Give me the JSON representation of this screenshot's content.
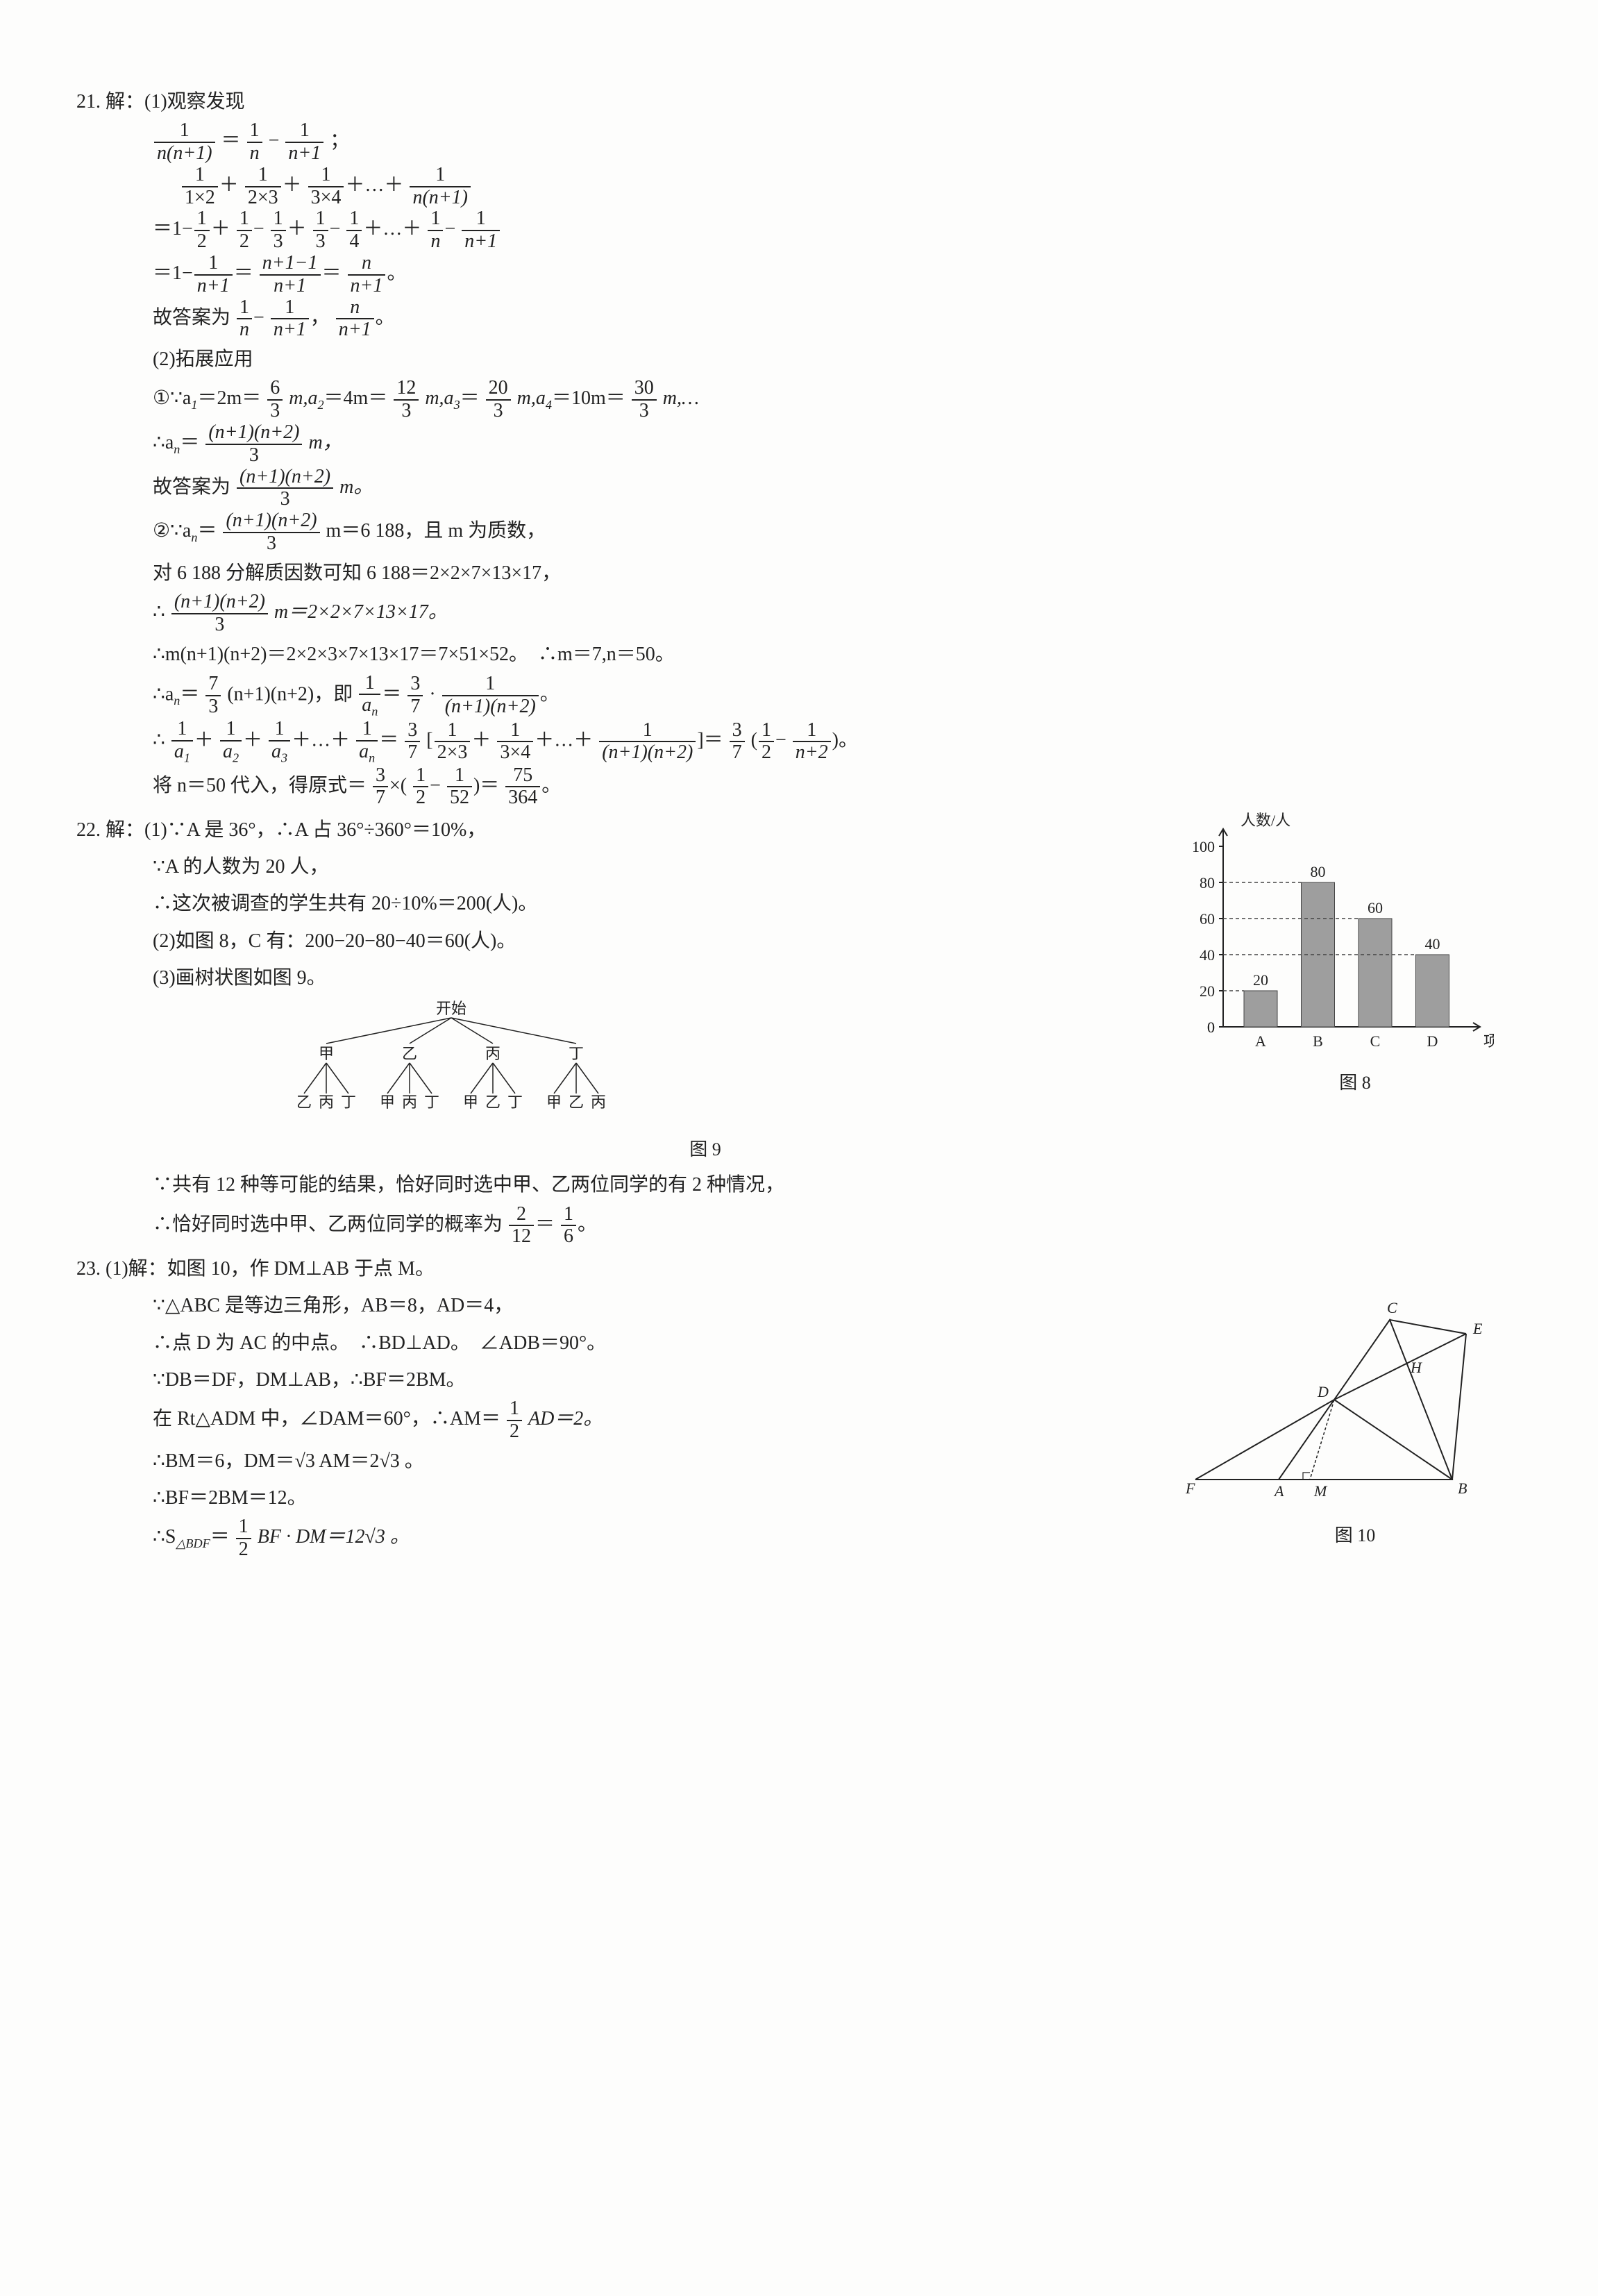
{
  "q21": {
    "num": "21.",
    "head": "解：(1)观察发现",
    "l1a": "1",
    "l1b": "n(n+1)",
    "l1c": "1",
    "l1d": "n",
    "l1e": "1",
    "l1f": "n+1",
    "l1tail": "；",
    "l2a": "1",
    "l2b": "1×2",
    "l2c": "1",
    "l2d": "2×3",
    "l2e": "1",
    "l2f": "3×4",
    "l2g": "1",
    "l2h": "n(n+1)",
    "l3a": "1",
    "l3b": "2",
    "l3c": "1",
    "l3d": "2",
    "l3e": "1",
    "l3f": "3",
    "l3g": "1",
    "l3h": "3",
    "l3i": "1",
    "l3j": "4",
    "l3k": "1",
    "l3l": "n",
    "l3m": "1",
    "l3n": "n+1",
    "l4a": "1",
    "l4b": "n+1",
    "l4c": "n+1−1",
    "l4d": "n+1",
    "l4e": "n",
    "l4f": "n+1",
    "ans1_pre": "故答案为",
    "ans1a": "1",
    "ans1b": "n",
    "ans1c": "1",
    "ans1d": "n+1",
    "ans1e": "n",
    "ans1f": "n+1",
    "part2": "(2)拓展应用",
    "p2_l1_pre": "①∵a",
    "p2_l1_a": "＝2m＝",
    "p2_l1_b": "6",
    "p2_l1_c": "3",
    "p2_l1_d": "m,a",
    "p2_l1_e": "＝4m＝",
    "p2_l1_f": "12",
    "p2_l1_g": "3",
    "p2_l1_h": "m,a",
    "p2_l1_i": "＝",
    "p2_l1_j": "20",
    "p2_l1_k": "3",
    "p2_l1_l": "m,a",
    "p2_l1_m": "＝10m＝",
    "p2_l1_n": "30",
    "p2_l1_o": "3",
    "p2_l1_p": "m,…",
    "p2_l2_pre": "∴a",
    "p2_l2_a": "(n+1)(n+2)",
    "p2_l2_b": "3",
    "p2_l2_c": "m，",
    "p2_l3_pre": "故答案为",
    "p2_l3_a": "(n+1)(n+2)",
    "p2_l3_b": "3",
    "p2_l3_c": "m。",
    "p2_l4_pre": "②∵a",
    "p2_l4_a": "(n+1)(n+2)",
    "p2_l4_b": "3",
    "p2_l4_c": "m＝6 188，且 m 为质数，",
    "p2_l5": "对 6 188 分解质因数可知 6 188＝2×2×7×13×17，",
    "p2_l6_pre": "∴",
    "p2_l6_a": "(n+1)(n+2)",
    "p2_l6_b": "3",
    "p2_l6_c": "m＝2×2×7×13×17。",
    "p2_l7": "∴m(n+1)(n+2)＝2×2×3×7×13×17＝7×51×52。　∴m＝7,n＝50。",
    "p2_l8_pre": "∴a",
    "p2_l8_a": "7",
    "p2_l8_b": "3",
    "p2_l8_c": "(n+1)(n+2)，即",
    "p2_l8_d": "1",
    "p2_l8_e": "a",
    "p2_l8_f": "3",
    "p2_l8_g": "7",
    "p2_l8_h": "1",
    "p2_l8_i": "(n+1)(n+2)",
    "p2_l9_pre": "∴",
    "p2_l9_a": "1",
    "p2_l9_b": "a",
    "p2_l9_c": "3",
    "p2_l9_d": "7",
    "p2_l9_e": "1",
    "p2_l9_f": "2×3",
    "p2_l9_g": "1",
    "p2_l9_h": "3×4",
    "p2_l9_i": "1",
    "p2_l9_j": "(n+1)(n+2)",
    "p2_l9_k": "3",
    "p2_l9_l": "7",
    "p2_l9_m": "1",
    "p2_l9_n": "2",
    "p2_l9_o": "1",
    "p2_l9_p": "n+2",
    "p2_l10_pre": "将 n＝50 代入，得原式＝",
    "p2_l10_a": "3",
    "p2_l10_b": "7",
    "p2_l10_c": "1",
    "p2_l10_d": "2",
    "p2_l10_e": "1",
    "p2_l10_f": "52",
    "p2_l10_g": "75",
    "p2_l10_h": "364"
  },
  "q22": {
    "num": "22.",
    "l1": "解：(1)∵A 是 36°，∴A 占 36°÷360°＝10%，",
    "l2": "∵A 的人数为 20 人，",
    "l3": "∴这次被调查的学生共有 20÷10%＝200(人)。",
    "l4": "(2)如图 8，C 有：200−20−80−40＝60(人)。",
    "l5": "(3)画树状图如图 9。",
    "l6": "∵共有 12 种等可能的结果，恰好同时选中甲、乙两位同学的有 2 种情况，",
    "l7_pre": "∴恰好同时选中甲、乙两位同学的概率为",
    "l7a": "2",
    "l7b": "12",
    "l7c": "1",
    "l7d": "6",
    "chart": {
      "title_y": "人数/人",
      "title_x": "项目",
      "y_max": 100,
      "y_tick": 20,
      "categories": [
        "A",
        "B",
        "C",
        "D"
      ],
      "values": [
        20,
        80,
        60,
        40
      ],
      "bar_color": "#9e9e9e",
      "bg": "#ffffff",
      "caption": "图 8"
    },
    "tree": {
      "root": "开始",
      "level1": [
        "甲",
        "乙",
        "丙",
        "丁"
      ],
      "level2": [
        [
          "乙",
          "丙",
          "丁"
        ],
        [
          "甲",
          "丙",
          "丁"
        ],
        [
          "甲",
          "乙",
          "丁"
        ],
        [
          "甲",
          "乙",
          "丙"
        ]
      ],
      "caption": "图 9"
    }
  },
  "q23": {
    "num": "23.",
    "l1": "(1)解：如图 10，作 DM⊥AB 于点 M。",
    "l2": "∵△ABC 是等边三角形，AB＝8，AD＝4，",
    "l3": "∴点 D 为 AC 的中点。　∴BD⊥AD。　∠ADB＝90°。",
    "l4": "∵DB＝DF，DM⊥AB，∴BF＝2BM。",
    "l5_pre": "在 Rt△ADM 中，∠DAM＝60°，∴AM＝",
    "l5a": "1",
    "l5b": "2",
    "l5c": "AD＝2。",
    "l6": "∴BM＝6，DM＝√3 AM＝2√3 。",
    "l7": "∴BF＝2BM＝12。",
    "l8_pre": "∴S",
    "l8a": "1",
    "l8b": "2",
    "l8c": "BF · DM＝12√3 。",
    "fig": {
      "caption": "图 10",
      "labels": {
        "A": "A",
        "B": "B",
        "C": "C",
        "D": "D",
        "E": "E",
        "F": "F",
        "H": "H",
        "M": "M"
      }
    }
  }
}
